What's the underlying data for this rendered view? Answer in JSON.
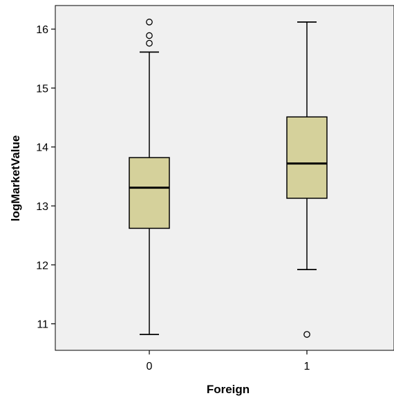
{
  "chart_data": {
    "type": "box",
    "xlabel": "Foreign",
    "ylabel": "logMarketValue",
    "categories": [
      "0",
      "1"
    ],
    "y_ticks": [
      11,
      12,
      13,
      14,
      15,
      16
    ],
    "ylim": [
      10.55,
      16.4
    ],
    "grid": false,
    "colors": {
      "plot_background": "#f0f0f0",
      "box_fill": "#d5d19b",
      "stroke": "#000000"
    },
    "boxes": [
      {
        "category": "0",
        "whisker_low": 10.82,
        "q1": 12.62,
        "median": 13.31,
        "q3": 13.82,
        "whisker_high": 15.61,
        "outliers": [
          15.76,
          15.89,
          16.12
        ]
      },
      {
        "category": "1",
        "whisker_low": 11.92,
        "q1": 13.13,
        "median": 13.72,
        "q3": 14.51,
        "whisker_high": 16.12,
        "outliers": [
          10.82
        ]
      }
    ]
  }
}
